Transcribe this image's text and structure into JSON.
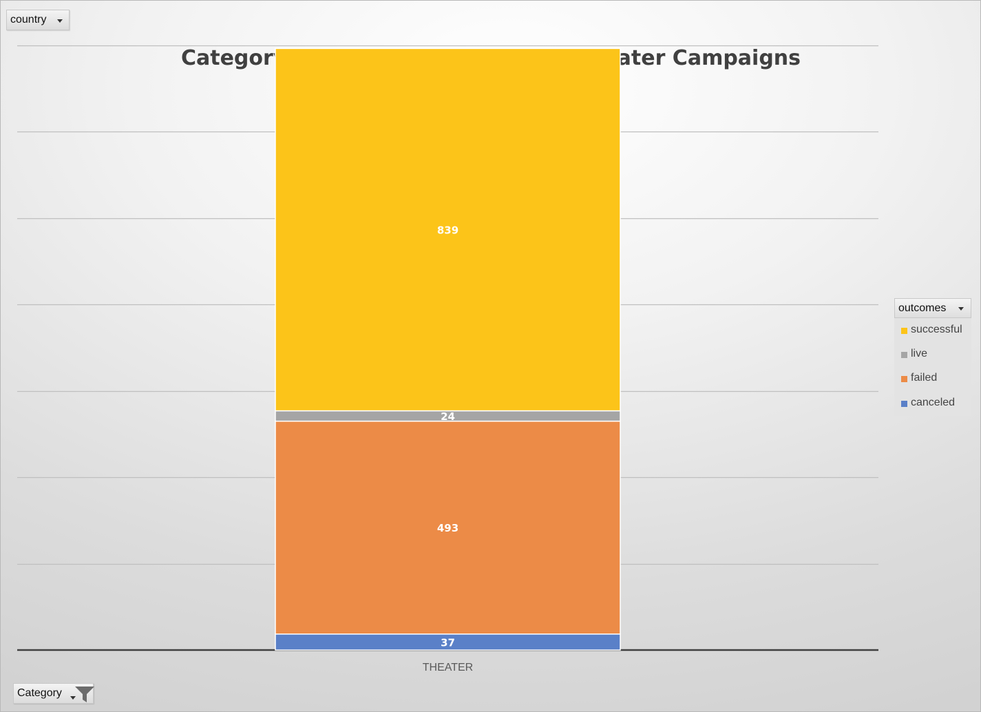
{
  "filters": {
    "country_label": "country",
    "category_label": "Category"
  },
  "legend": {
    "header": "outcomes",
    "items": [
      {
        "label": "successful",
        "color": "#fcc419"
      },
      {
        "label": "live",
        "color": "#a5a5a5"
      },
      {
        "label": "failed",
        "color": "#ec8b47"
      },
      {
        "label": "canceled",
        "color": "#5a80c8"
      }
    ]
  },
  "chart_data": {
    "type": "bar",
    "stacked": true,
    "title": "Category Outcomes - World Wide Theater Campaigns",
    "categories": [
      "THEATER"
    ],
    "series": [
      {
        "name": "canceled",
        "values": [
          37
        ],
        "color": "#5a80c8"
      },
      {
        "name": "failed",
        "values": [
          493
        ],
        "color": "#ec8b47"
      },
      {
        "name": "live",
        "values": [
          24
        ],
        "color": "#a5a5a5"
      },
      {
        "name": "successful",
        "values": [
          839
        ],
        "color": "#fcc419"
      }
    ],
    "ylim": [
      0,
      1400
    ],
    "ytick_step": 200,
    "y_axis_labels_shown": false,
    "grid": true,
    "legend_position": "right",
    "data_labels": true
  }
}
